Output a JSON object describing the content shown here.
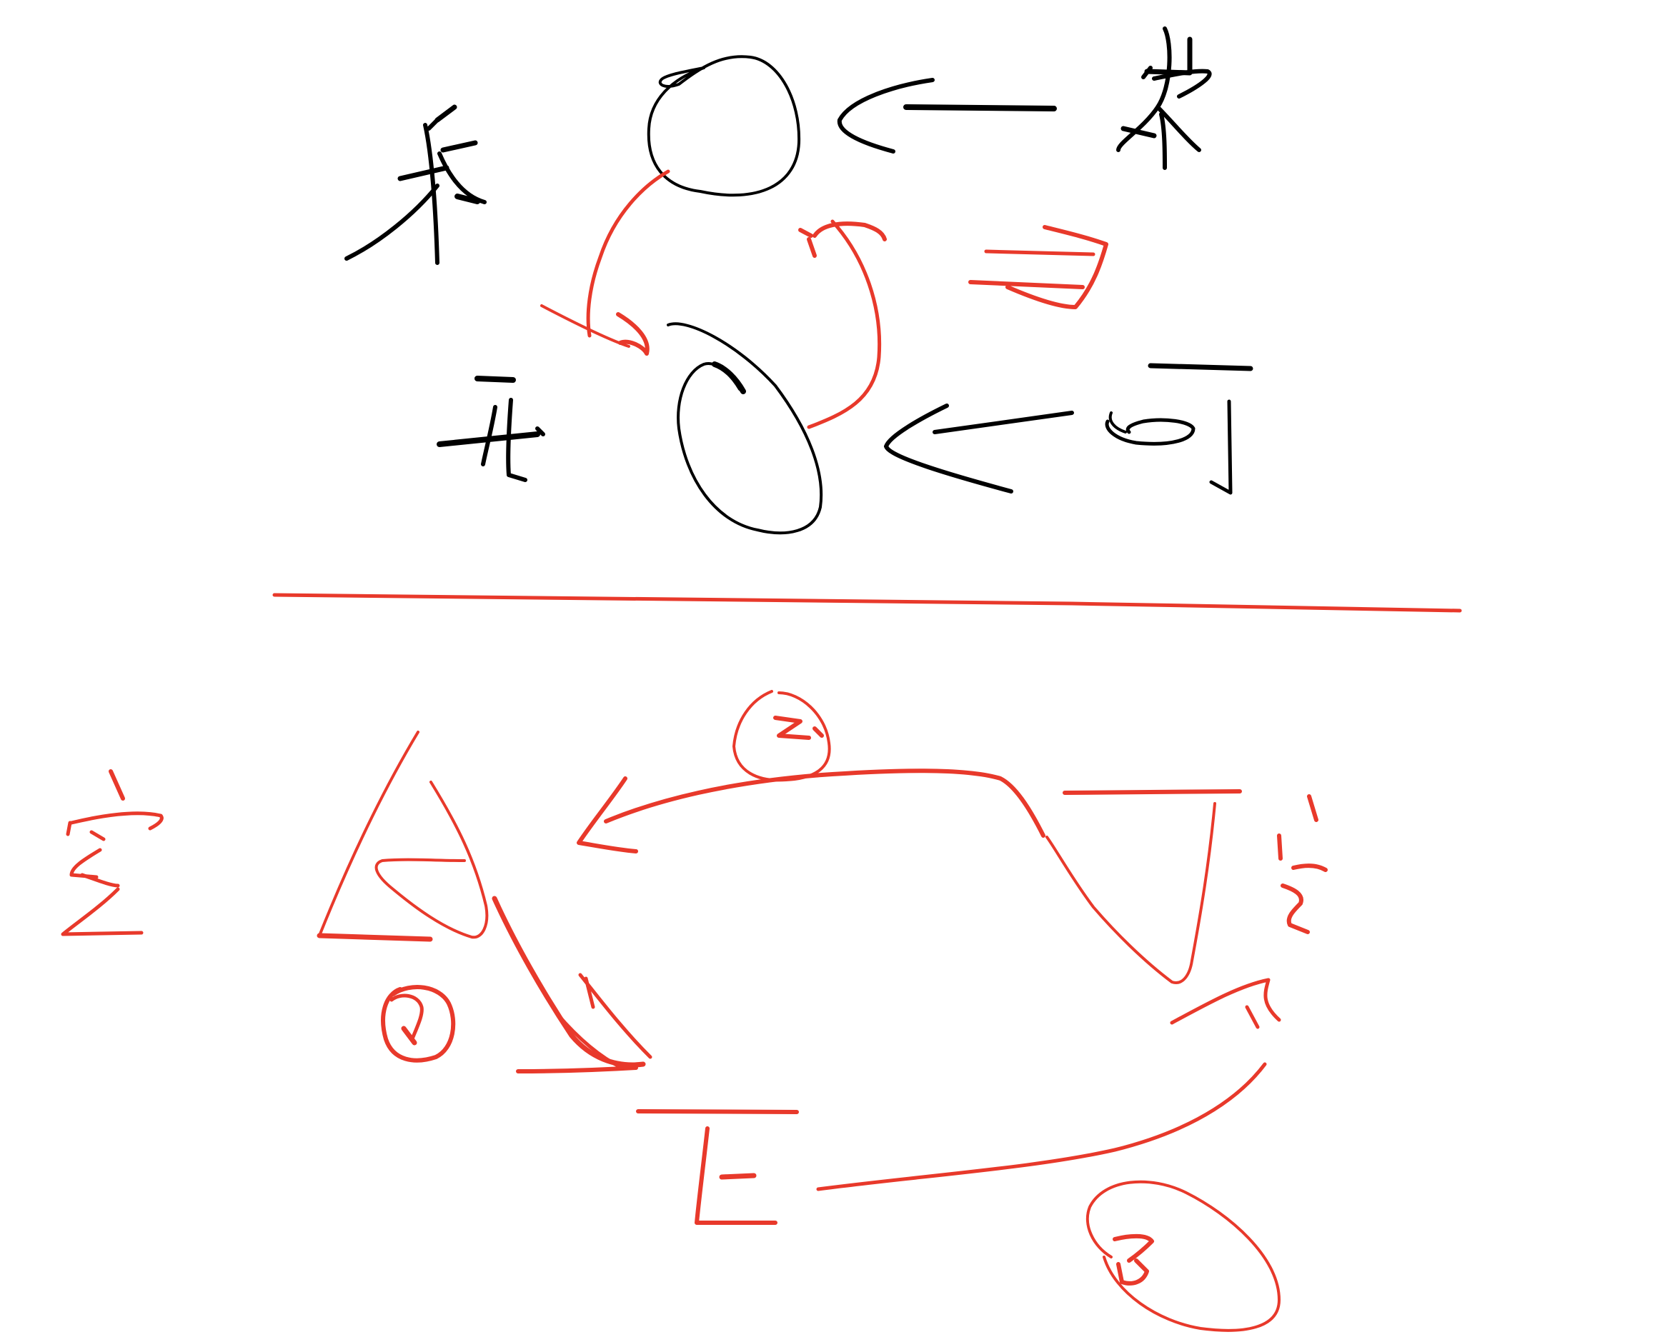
{
  "colors": {
    "black_ink": "#000000",
    "red_ink": "#e8392b",
    "background": "#ffffff"
  },
  "top_section": {
    "left_characters": [
      "来",
      "去"
    ],
    "right_characters": [
      "来",
      "回"
    ],
    "note": ""
  },
  "bottom_section": {
    "left_character": "空",
    "step_markers": [
      "①",
      "②",
      "③"
    ]
  }
}
